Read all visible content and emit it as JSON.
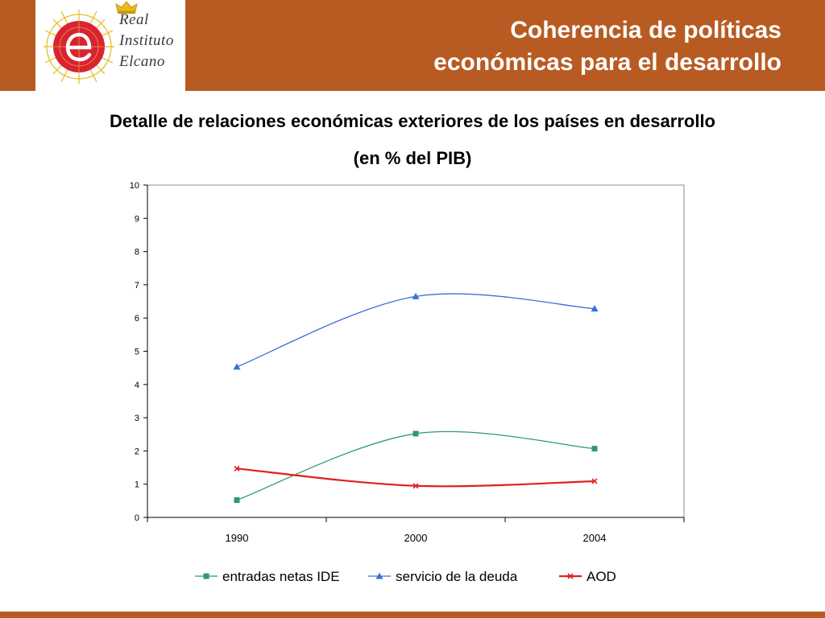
{
  "header": {
    "org_lines": [
      "Real",
      "Instituto",
      "Elcano"
    ],
    "title_lines": [
      "Coherencia de políticas",
      "económicas para el desarrollo"
    ],
    "colors": {
      "bar": "#b85b22",
      "logo_red": "#d9232e",
      "logo_gold": "#e8b920"
    },
    "icons": [
      "crown-icon",
      "elcano-e-emblem-icon"
    ]
  },
  "chart_data": {
    "type": "line",
    "title_lines": [
      "Detalle de relaciones económicas exteriores de los países en desarrollo",
      "(en % del PIB)"
    ],
    "categories": [
      "1990",
      "2000",
      "2004"
    ],
    "ylim": [
      0,
      10
    ],
    "yticks": [
      "0",
      "1",
      "2",
      "3",
      "4",
      "5",
      "6",
      "7",
      "8",
      "9",
      "10"
    ],
    "xlabel": "",
    "ylabel": "",
    "grid": false,
    "smooth": true,
    "legend_position": "bottom",
    "series": [
      {
        "name": "entradas netas IDE",
        "values": [
          0.52,
          2.52,
          2.07
        ],
        "color": "#2e9a6a",
        "marker": "square"
      },
      {
        "name": "servicio de la deuda",
        "values": [
          4.53,
          6.65,
          6.28
        ],
        "color": "#3a6fd8",
        "marker": "triangle"
      },
      {
        "name": "AOD",
        "values": [
          1.47,
          0.95,
          1.09
        ],
        "color": "#e0201c",
        "marker": "x"
      }
    ]
  }
}
